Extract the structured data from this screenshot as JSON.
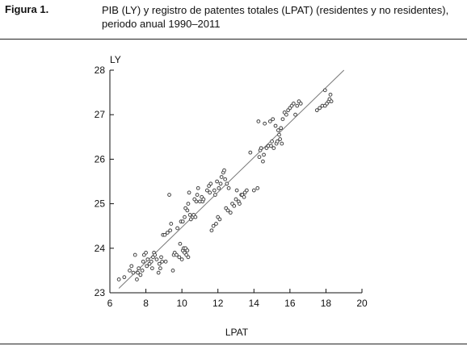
{
  "figure": {
    "label": "Figura 1.",
    "title": "PIB (LY) y registro de patentes totales (LPAT) (residentes y no residentes),\nperiodo anual 1990–2011"
  },
  "chart_data": {
    "type": "scatter",
    "title": "PIB (LY) y registro de patentes totales (LPAT) (residentes y no residentes), periodo anual 1990–2011",
    "xlabel": "LPAT",
    "ylabel": "LY",
    "xlim": [
      6,
      20
    ],
    "ylim": [
      23,
      28
    ],
    "xticks": [
      "6",
      "8",
      "10",
      "12",
      "14",
      "16",
      "18",
      "20"
    ],
    "yticks": [
      "23",
      "24",
      "25",
      "26",
      "27",
      "28"
    ],
    "grid": false,
    "legend": "none",
    "fit_line": {
      "x": [
        6.5,
        19.0
      ],
      "y": [
        23.1,
        28.0
      ]
    },
    "colors": {
      "points": "#444444",
      "line": "#777777",
      "axis": "#111111"
    },
    "series": [
      {
        "points": [
          [
            6.5,
            23.3
          ],
          [
            6.8,
            23.35
          ],
          [
            7.1,
            23.5
          ],
          [
            7.2,
            23.6
          ],
          [
            7.3,
            23.45
          ],
          [
            7.4,
            23.85
          ],
          [
            7.5,
            23.3
          ],
          [
            7.55,
            23.45
          ],
          [
            7.6,
            23.55
          ],
          [
            7.7,
            23.4
          ],
          [
            7.8,
            23.5
          ],
          [
            7.85,
            23.7
          ],
          [
            7.9,
            23.85
          ],
          [
            8.0,
            23.9
          ],
          [
            8.05,
            23.6
          ],
          [
            8.1,
            23.75
          ],
          [
            8.2,
            23.65
          ],
          [
            8.3,
            23.7
          ],
          [
            8.35,
            23.55
          ],
          [
            8.4,
            23.8
          ],
          [
            8.45,
            23.9
          ],
          [
            8.5,
            23.85
          ],
          [
            8.6,
            23.75
          ],
          [
            8.7,
            23.45
          ],
          [
            8.75,
            23.65
          ],
          [
            8.8,
            23.55
          ],
          [
            8.85,
            23.8
          ],
          [
            8.9,
            23.7
          ],
          [
            8.95,
            24.3
          ],
          [
            9.05,
            24.3
          ],
          [
            9.1,
            23.7
          ],
          [
            9.2,
            24.35
          ],
          [
            9.3,
            25.2
          ],
          [
            9.35,
            24.4
          ],
          [
            9.4,
            24.55
          ],
          [
            9.5,
            23.5
          ],
          [
            9.55,
            23.85
          ],
          [
            9.6,
            23.9
          ],
          [
            9.7,
            23.85
          ],
          [
            9.75,
            24.45
          ],
          [
            9.85,
            23.8
          ],
          [
            9.9,
            24.1
          ],
          [
            10.0,
            23.75
          ],
          [
            10.05,
            23.95
          ],
          [
            10.1,
            24.0
          ],
          [
            10.15,
            23.9
          ],
          [
            10.2,
            24.0
          ],
          [
            10.25,
            23.85
          ],
          [
            10.3,
            23.95
          ],
          [
            10.35,
            23.8
          ],
          [
            9.95,
            24.6
          ],
          [
            10.05,
            24.6
          ],
          [
            10.15,
            24.7
          ],
          [
            10.2,
            24.9
          ],
          [
            10.3,
            24.85
          ],
          [
            10.35,
            25.0
          ],
          [
            10.4,
            25.25
          ],
          [
            10.45,
            24.75
          ],
          [
            10.5,
            24.65
          ],
          [
            10.6,
            24.7
          ],
          [
            10.65,
            24.75
          ],
          [
            10.7,
            25.1
          ],
          [
            10.75,
            24.7
          ],
          [
            10.8,
            25.05
          ],
          [
            10.85,
            25.2
          ],
          [
            10.9,
            25.35
          ],
          [
            11.0,
            25.05
          ],
          [
            11.1,
            25.15
          ],
          [
            11.15,
            25.05
          ],
          [
            11.2,
            25.1
          ],
          [
            11.4,
            25.3
          ],
          [
            11.5,
            25.4
          ],
          [
            11.55,
            25.25
          ],
          [
            11.6,
            25.45
          ],
          [
            11.65,
            24.4
          ],
          [
            11.75,
            24.5
          ],
          [
            11.8,
            25.3
          ],
          [
            11.85,
            25.2
          ],
          [
            11.9,
            24.55
          ],
          [
            11.95,
            25.5
          ],
          [
            12.0,
            24.7
          ],
          [
            12.05,
            25.35
          ],
          [
            12.1,
            24.65
          ],
          [
            12.15,
            25.45
          ],
          [
            12.2,
            25.6
          ],
          [
            12.3,
            25.7
          ],
          [
            12.35,
            25.75
          ],
          [
            12.4,
            25.55
          ],
          [
            12.45,
            24.9
          ],
          [
            12.5,
            25.45
          ],
          [
            12.55,
            24.85
          ],
          [
            12.6,
            25.35
          ],
          [
            12.7,
            24.8
          ],
          [
            12.8,
            25.0
          ],
          [
            12.9,
            24.95
          ],
          [
            13.0,
            25.1
          ],
          [
            13.05,
            25.3
          ],
          [
            13.15,
            25.05
          ],
          [
            13.2,
            25.0
          ],
          [
            13.3,
            25.2
          ],
          [
            13.35,
            25.2
          ],
          [
            13.45,
            25.15
          ],
          [
            13.5,
            25.25
          ],
          [
            13.6,
            25.3
          ],
          [
            13.8,
            26.15
          ],
          [
            14.0,
            25.3
          ],
          [
            14.2,
            25.35
          ],
          [
            14.25,
            26.85
          ],
          [
            14.3,
            26.05
          ],
          [
            14.35,
            26.2
          ],
          [
            14.4,
            26.25
          ],
          [
            14.5,
            25.95
          ],
          [
            14.55,
            26.1
          ],
          [
            14.6,
            26.8
          ],
          [
            14.7,
            26.25
          ],
          [
            14.8,
            26.3
          ],
          [
            14.9,
            26.85
          ],
          [
            14.95,
            26.3
          ],
          [
            15.0,
            26.4
          ],
          [
            15.05,
            26.9
          ],
          [
            15.1,
            26.25
          ],
          [
            15.2,
            26.75
          ],
          [
            15.25,
            26.35
          ],
          [
            15.3,
            26.4
          ],
          [
            15.35,
            26.65
          ],
          [
            15.4,
            26.55
          ],
          [
            15.45,
            26.45
          ],
          [
            15.5,
            26.7
          ],
          [
            15.55,
            26.35
          ],
          [
            15.6,
            26.9
          ],
          [
            15.7,
            27.05
          ],
          [
            15.8,
            27.0
          ],
          [
            15.9,
            27.1
          ],
          [
            16.0,
            27.15
          ],
          [
            16.1,
            27.2
          ],
          [
            16.2,
            27.25
          ],
          [
            16.3,
            27.0
          ],
          [
            16.4,
            27.2
          ],
          [
            16.5,
            27.3
          ],
          [
            16.6,
            27.25
          ],
          [
            17.5,
            27.1
          ],
          [
            17.65,
            27.15
          ],
          [
            17.8,
            27.2
          ],
          [
            17.95,
            27.2
          ],
          [
            18.05,
            27.25
          ],
          [
            18.15,
            27.3
          ],
          [
            18.2,
            27.35
          ],
          [
            18.25,
            27.45
          ],
          [
            18.3,
            27.3
          ],
          [
            17.95,
            27.55
          ]
        ]
      }
    ]
  }
}
